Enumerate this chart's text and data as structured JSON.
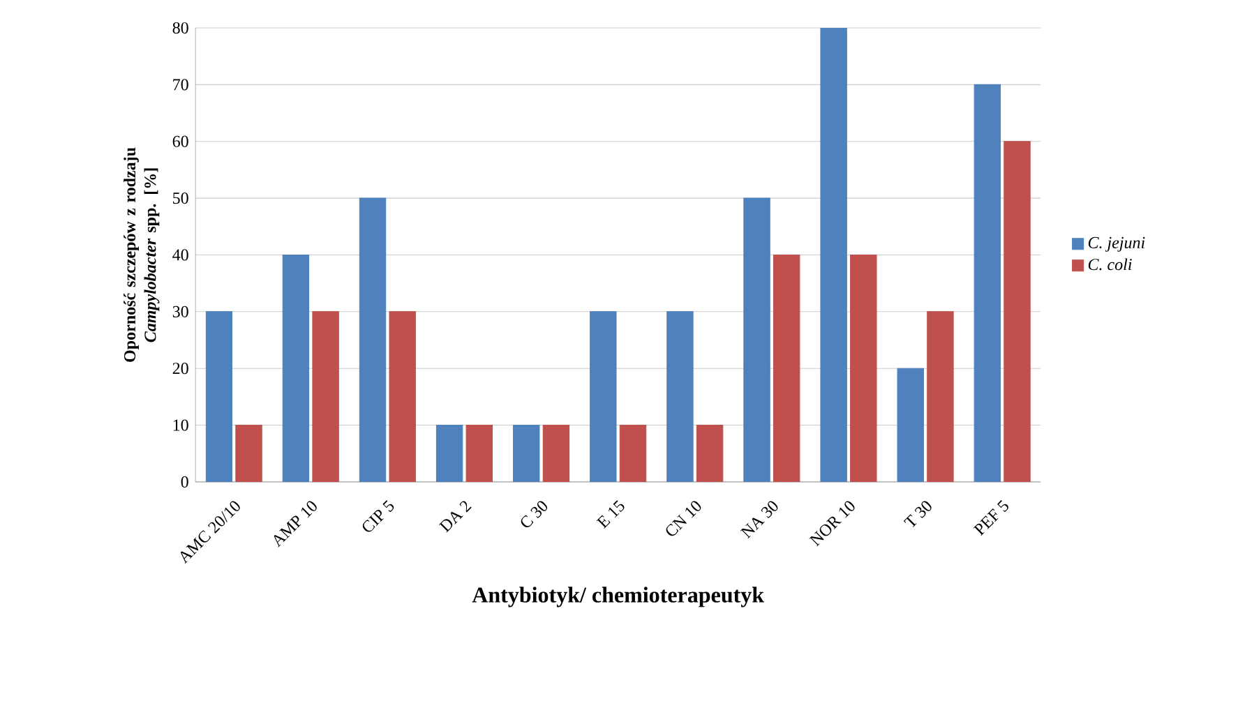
{
  "chart_data": {
    "type": "bar",
    "xlabel": "Antybiotyk/ chemioterapeutyk",
    "ylabel": "Oporność szczepów z rodzaju *Campylobacter* spp. [%]",
    "categories": [
      "AMC 20/10",
      "AMP 10",
      "CIP 5",
      "DA 2",
      "C 30",
      "E 15",
      "CN 10",
      "NA 30",
      "NOR 10",
      "T 30",
      "PEF 5"
    ],
    "series": [
      {
        "name": "C. jejuni",
        "color": "#4f81bd",
        "values": [
          30,
          40,
          50,
          10,
          10,
          30,
          30,
          50,
          80,
          20,
          70
        ]
      },
      {
        "name": "C. coli",
        "color": "#c0504d",
        "values": [
          10,
          30,
          30,
          10,
          10,
          10,
          10,
          40,
          40,
          30,
          60
        ]
      }
    ],
    "ylim": [
      0,
      80
    ],
    "yticks": [
      0,
      10,
      20,
      30,
      40,
      50,
      60,
      70,
      80
    ],
    "grid": "y",
    "legend": "right"
  }
}
